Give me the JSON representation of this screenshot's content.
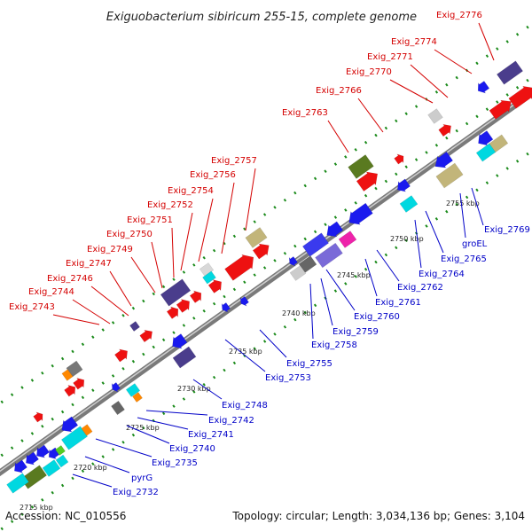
{
  "title": "Exiguobacterium sibiricum 255-15, complete genome",
  "footer": {
    "accession": "Accession: NC_010556",
    "summary": "Topology: circular; Length: 3,034,136 bp; Genes: 3,104"
  },
  "colors": {
    "forward_label": "#d40000",
    "reverse_label": "#0000c8",
    "backbone": "#8a8a8a",
    "tick_dots": "#1a8a1a"
  },
  "scale_ticks": [
    "2715 kbp",
    "2720 kbp",
    "2725 kbp",
    "2730 kbp",
    "2735 kbp",
    "2740 kbp",
    "2745 kbp",
    "2750 kbp",
    "2755 kbp"
  ],
  "forward_gene_labels": [
    "Exig_2776",
    "Exig_2774",
    "Exig_2771",
    "Exig_2770",
    "Exig_2766",
    "Exig_2763",
    "Exig_2757",
    "Exig_2756",
    "Exig_2754",
    "Exig_2752",
    "Exig_2751",
    "Exig_2750",
    "Exig_2749",
    "Exig_2747",
    "Exig_2746",
    "Exig_2744",
    "Exig_2743"
  ],
  "reverse_gene_labels": [
    "Exig_2769",
    "groEL",
    "Exig_2765",
    "Exig_2764",
    "Exig_2762",
    "Exig_2761",
    "Exig_2760",
    "Exig_2759",
    "Exig_2758",
    "Exig_2755",
    "Exig_2753",
    "Exig_2748",
    "Exig_2742",
    "Exig_2741",
    "Exig_2740",
    "Exig_2735",
    "pyrG",
    "Exig_2732"
  ]
}
